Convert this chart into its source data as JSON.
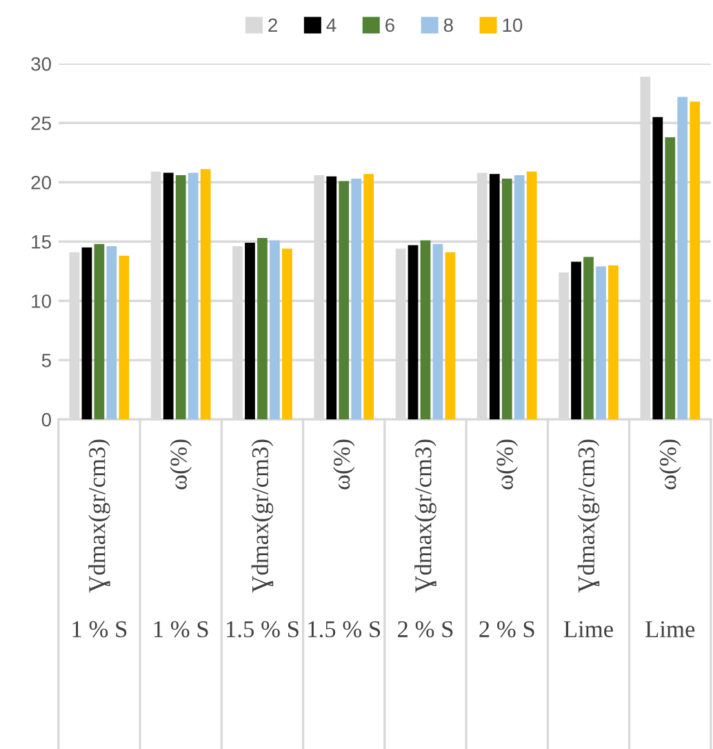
{
  "chart_data": {
    "type": "bar",
    "categories": [
      "Ɣdmax(gr/cm3)",
      "ω(%)",
      "Ɣdmax(gr/cm3)",
      "ω(%)",
      "Ɣdmax(gr/cm3)",
      "ω(%)",
      "Ɣdmax(gr/cm3)",
      "ω(%)"
    ],
    "annotations": [
      "1 % S",
      "1 % S",
      "1.5 % S",
      "1.5 % S",
      "2 % S",
      "2 % S",
      "Lime",
      "Lime"
    ],
    "series": [
      {
        "name": "2",
        "color": "#d9d9d9",
        "values": [
          14.1,
          20.9,
          14.6,
          20.6,
          14.4,
          20.8,
          12.4,
          28.9
        ]
      },
      {
        "name": "4",
        "color": "#000000",
        "values": [
          14.5,
          20.8,
          14.9,
          20.5,
          14.7,
          20.7,
          13.3,
          25.5
        ]
      },
      {
        "name": "6",
        "color": "#548235",
        "values": [
          14.8,
          20.6,
          15.3,
          20.1,
          15.1,
          20.3,
          13.7,
          23.8
        ]
      },
      {
        "name": "8",
        "color": "#9dc3e6",
        "values": [
          14.6,
          20.8,
          15.1,
          20.3,
          14.8,
          20.6,
          12.9,
          27.2
        ]
      },
      {
        "name": "10",
        "color": "#ffc000",
        "values": [
          13.8,
          21.1,
          14.4,
          20.7,
          14.1,
          20.9,
          13.0,
          26.8
        ]
      }
    ],
    "ylim": [
      0,
      30
    ],
    "yticks": [
      0,
      5,
      10,
      15,
      20,
      25,
      30
    ],
    "grid": "y",
    "legend": "top"
  }
}
